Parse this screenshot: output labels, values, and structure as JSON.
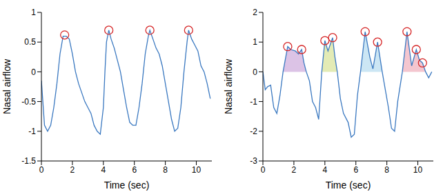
{
  "chart_data": [
    {
      "type": "line",
      "x_label": "Time (sec)",
      "y_label": "Nasal airflow",
      "color": "#3a78c0",
      "x": [
        0,
        0.2,
        0.4,
        0.6,
        0.8,
        1.0,
        1.2,
        1.4,
        1.6,
        1.8,
        2.0,
        2.2,
        2.4,
        2.6,
        2.8,
        3.0,
        3.2,
        3.4,
        3.6,
        3.8,
        4.0,
        4.1,
        4.2,
        4.35,
        4.5,
        4.7,
        4.9,
        5.1,
        5.3,
        5.5,
        5.7,
        5.9,
        6.1,
        6.3,
        6.5,
        6.7,
        6.9,
        7.0,
        7.2,
        7.4,
        7.6,
        7.8,
        8.0,
        8.2,
        8.4,
        8.6,
        8.8,
        9.0,
        9.2,
        9.4,
        9.5,
        9.7,
        9.9,
        10.1,
        10.3,
        10.5,
        10.7,
        10.9
      ],
      "values": [
        -0.15,
        -0.9,
        -1.0,
        -0.9,
        -0.6,
        -0.2,
        0.3,
        0.6,
        0.6,
        0.55,
        0.3,
        0.0,
        -0.2,
        -0.35,
        -0.5,
        -0.6,
        -0.7,
        -0.9,
        -1.0,
        -1.05,
        -0.6,
        0.0,
        0.5,
        0.7,
        0.55,
        0.4,
        0.2,
        0.0,
        -0.3,
        -0.6,
        -0.85,
        -0.9,
        -0.9,
        -0.6,
        -0.2,
        0.3,
        0.6,
        0.7,
        0.55,
        0.4,
        0.3,
        0.1,
        -0.2,
        -0.5,
        -0.8,
        -1.0,
        -0.95,
        -0.6,
        0.0,
        0.5,
        0.7,
        0.55,
        0.45,
        0.35,
        0.1,
        0.0,
        -0.2,
        -0.45
      ],
      "xlim": [
        0,
        11
      ],
      "xticks": [
        0,
        2,
        4,
        6,
        8,
        10
      ],
      "ylim": [
        -1.5,
        1
      ],
      "yticks": [
        -1.5,
        -1,
        -0.5,
        0,
        0.5,
        1
      ],
      "peaks": {
        "x": [
          1.5,
          4.35,
          7.0,
          9.5
        ],
        "values": [
          0.62,
          0.7,
          0.7,
          0.7
        ],
        "color": "#d62728",
        "marker": "circle"
      }
    },
    {
      "type": "line",
      "x_label": "Time (sec)",
      "y_label": "Nasal airflow",
      "color": "#3a78c0",
      "x": [
        0,
        0.15,
        0.3,
        0.5,
        0.7,
        0.9,
        1.1,
        1.3,
        1.6,
        1.8,
        2.1,
        2.3,
        2.5,
        2.65,
        2.8,
        3.0,
        3.2,
        3.4,
        3.6,
        3.8,
        4.0,
        4.2,
        4.5,
        4.65,
        4.8,
        5.0,
        5.2,
        5.5,
        5.7,
        5.9,
        6.1,
        6.3,
        6.6,
        6.9,
        7.1,
        7.4,
        7.7,
        7.9,
        8.1,
        8.3,
        8.5,
        8.7,
        9.0,
        9.3,
        9.6,
        9.9,
        10.1,
        10.3,
        10.5,
        10.7,
        10.9
      ],
      "values": [
        0.0,
        -0.6,
        -0.5,
        -0.45,
        -1.2,
        -1.4,
        -0.8,
        0.0,
        0.85,
        0.75,
        0.7,
        0.6,
        0.75,
        0.3,
        0.0,
        -0.3,
        -1.0,
        -1.2,
        -1.6,
        0.0,
        1.05,
        0.7,
        1.15,
        0.5,
        0.0,
        -0.9,
        -1.4,
        -1.7,
        -2.2,
        -2.1,
        -0.8,
        0.0,
        1.35,
        0.5,
        0.1,
        1.0,
        0.0,
        -0.6,
        -1.2,
        -1.9,
        -2.0,
        -1.0,
        0.0,
        1.35,
        0.2,
        0.75,
        0.4,
        0.3,
        0.0,
        -0.2,
        0.0
      ],
      "xlim": [
        0,
        11
      ],
      "xticks": [
        0,
        2,
        4,
        6,
        8,
        10
      ],
      "ylim": [
        -3,
        2
      ],
      "yticks": [
        -3,
        -2,
        -1,
        0,
        1,
        2
      ],
      "peaks": {
        "x": [
          1.6,
          2.5,
          4.0,
          4.5,
          6.6,
          7.4,
          9.3,
          9.9,
          10.3
        ],
        "values": [
          0.85,
          0.75,
          1.05,
          1.15,
          1.35,
          1.0,
          1.35,
          0.75,
          0.3
        ],
        "color": "#d62728",
        "marker": "circle"
      },
      "regions": [
        {
          "x": [
            1.3,
            2.8
          ],
          "color": "#dcc3e6"
        },
        {
          "x": [
            3.8,
            4.8
          ],
          "color": "#e3ebb5"
        },
        {
          "x": [
            6.3,
            7.7
          ],
          "color": "#cce6f4"
        },
        {
          "x": [
            9.0,
            10.5
          ],
          "color": "#f4c6cf"
        }
      ]
    }
  ]
}
